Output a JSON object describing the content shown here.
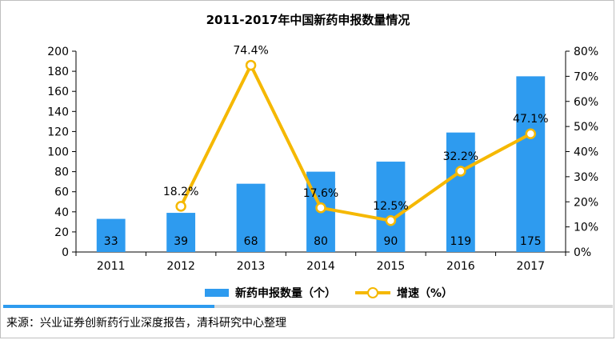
{
  "colors": {
    "bar": "#2e9bef",
    "line": "#f5b800",
    "axis": "#000000"
  },
  "chart_data": {
    "type": "bar",
    "title": "2011-2017年中国新药申报数量情况",
    "categories": [
      "2011",
      "2012",
      "2013",
      "2014",
      "2015",
      "2016",
      "2017"
    ],
    "series": [
      {
        "name": "新药申报数量（个）",
        "type": "bar",
        "axis": "left",
        "values": [
          33,
          39,
          68,
          80,
          90,
          119,
          175
        ]
      },
      {
        "name": "增速（%）",
        "type": "line",
        "axis": "right",
        "values": [
          null,
          18.2,
          74.4,
          17.6,
          12.5,
          32.2,
          47.1
        ]
      }
    ],
    "bar_labels": [
      "33",
      "39",
      "68",
      "80",
      "90",
      "119",
      "175"
    ],
    "line_labels": [
      "",
      "18.2%",
      "74.4%",
      "17.6%",
      "12.5%",
      "32.2%",
      "47.1%"
    ],
    "y_left": {
      "range": [
        0,
        200
      ],
      "ticks": [
        "0",
        "20",
        "40",
        "60",
        "80",
        "100",
        "120",
        "140",
        "160",
        "180",
        "200"
      ]
    },
    "y_right": {
      "range": [
        0,
        80
      ],
      "ticks": [
        "0%",
        "10%",
        "20%",
        "30%",
        "40%",
        "50%",
        "60%",
        "70%",
        "80%"
      ]
    },
    "legend": {
      "position": "bottom",
      "bar_label": "新药申报数量（个）",
      "line_label": "增速（%）"
    }
  },
  "source_text": "来源：兴业证券创新药行业深度报告，清科研究中心整理"
}
